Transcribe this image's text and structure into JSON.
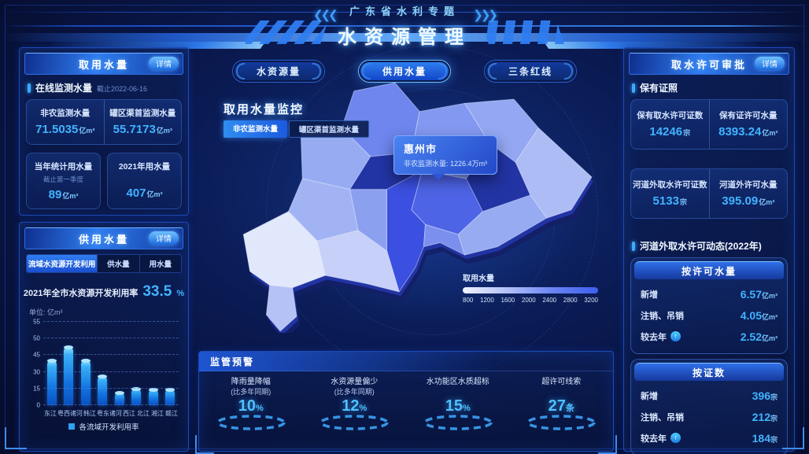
{
  "header": {
    "supertitle": "广东省水利专题",
    "title": "水资源管理"
  },
  "nav": {
    "tabs": [
      {
        "label": "水资源量"
      },
      {
        "label": "供用水量"
      },
      {
        "label": "三条红线"
      }
    ],
    "active_index": 1
  },
  "intake": {
    "title": "取用水量",
    "detail_label": "详情",
    "online": {
      "label": "在线监测水量",
      "asof": "截止2022-06-16"
    },
    "pair": {
      "left": {
        "label": "非农监测水量",
        "value": "71.5035",
        "unit": "亿m³"
      },
      "right": {
        "label": "罐区渠首监测水量",
        "value": "55.7173",
        "unit": "亿m³"
      }
    },
    "cards": {
      "left": {
        "label": "当年统计用水量",
        "sub": "截止第一季度",
        "value": "89",
        "unit": "亿m³"
      },
      "right": {
        "label": "2021年用水量",
        "sub": "",
        "value": "407",
        "unit": "亿m³"
      }
    }
  },
  "supply": {
    "title": "供用水量",
    "detail_label": "详情",
    "tabs": [
      {
        "label": "流域水资源开发利用"
      },
      {
        "label": "供水量"
      },
      {
        "label": "用水量"
      }
    ],
    "active_tab": 0,
    "headline": {
      "label": "2021年全市水资源开发利用率",
      "value": "33.5",
      "unit": "%"
    },
    "unit_note": "单位: 亿m³"
  },
  "chart_data": {
    "type": "bar",
    "title": "各流域开发利用率",
    "unit_label": "单位: 亿m³",
    "categories": [
      "东江",
      "粤西诸河",
      "韩江",
      "粤东诸河",
      "西江",
      "北江",
      "湘江",
      "赣江"
    ],
    "values": [
      40,
      47.5,
      40,
      26,
      11,
      15,
      14.5,
      14
    ],
    "yticks": [
      0,
      15,
      30,
      45,
      50,
      55
    ],
    "ylim": [
      0,
      55
    ],
    "grid": "dashed",
    "legend": "各流域开发利用率",
    "legend_position": "bottom"
  },
  "monitor": {
    "title": "取用水量监控",
    "toggles": [
      {
        "label": "非农监测水量"
      },
      {
        "label": "罐区渠首监测水量"
      }
    ],
    "active_toggle": 0,
    "tooltip": {
      "city": "惠州市",
      "metric": "非农监测水量:",
      "value": "1226.4",
      "unit": "万m³"
    },
    "scale": {
      "label": "取用水量",
      "ticks": [
        "800",
        "1200",
        "1600",
        "2000",
        "2400",
        "2800",
        "3200"
      ]
    }
  },
  "warning": {
    "title": "监管预警",
    "items": [
      {
        "label": "降雨量降幅",
        "sub": "(比多年同期)",
        "value": "10",
        "unit": "%"
      },
      {
        "label": "水资源量偏少",
        "sub": "(比多年同期)",
        "value": "12",
        "unit": "%"
      },
      {
        "label": "水功能区水质超标",
        "sub": "",
        "value": "15",
        "unit": "%"
      },
      {
        "label": "超许可线索",
        "sub": "",
        "value": "27",
        "unit": "条"
      }
    ]
  },
  "permit": {
    "title": "取水许可审批",
    "detail_label": "详情",
    "section_licenses": "保有证照",
    "pair1": {
      "left": {
        "label": "保有取水许可证数",
        "value": "14246",
        "unit": "宗"
      },
      "right": {
        "label": "保有证许可水量",
        "value": "8393.24",
        "unit": "亿m³"
      }
    },
    "pair2": {
      "left": {
        "label": "河道外取水许可证数",
        "value": "5133",
        "unit": "宗"
      },
      "right": {
        "label": "河道外许可水量",
        "value": "395.09",
        "unit": "亿m³"
      }
    },
    "section_dynamic": "河道外取水许可动态(2022年)",
    "by_volume": {
      "title": "按许可水量",
      "rows": [
        {
          "label": "新增",
          "value": "6.57",
          "unit": "亿m³"
        },
        {
          "label": "注销、吊销",
          "value": "4.05",
          "unit": "亿m³"
        },
        {
          "label": "较去年",
          "arrow": "up",
          "value": "2.52",
          "unit": "亿m³"
        }
      ]
    },
    "by_count": {
      "title": "按证数",
      "rows": [
        {
          "label": "新增",
          "value": "396",
          "unit": "宗"
        },
        {
          "label": "注销、吊销",
          "value": "212",
          "unit": "宗"
        },
        {
          "label": "较去年",
          "arrow": "up",
          "value": "184",
          "unit": "宗"
        }
      ]
    }
  },
  "colors": {
    "accent": "#3fa9ff",
    "value_blue": "#41b3ff",
    "panel_border": "#1c4ab8",
    "map_dark": "#3b50e0",
    "map_light": "#e2e8fc",
    "bar": "#2fa0f0"
  }
}
